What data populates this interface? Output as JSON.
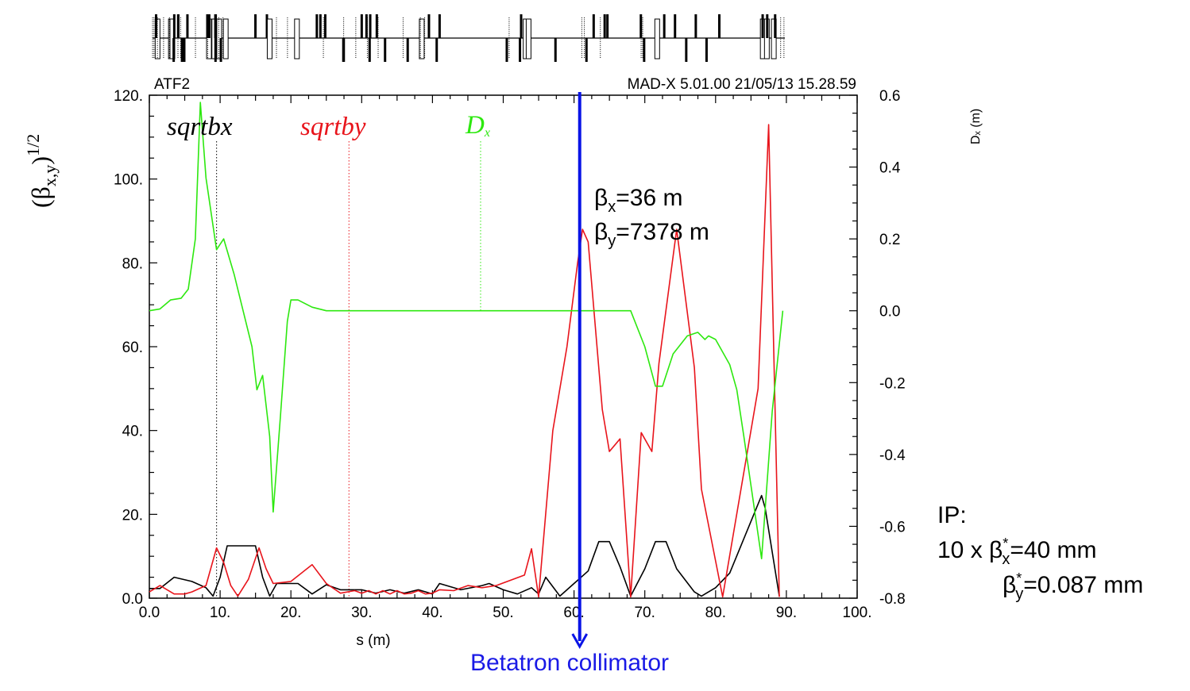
{
  "header": {
    "left": "ATF2",
    "right": "MAD-X 5.01.00  21/05/13 15.28.59"
  },
  "axes": {
    "xlabel": "s (m)",
    "ylabel_left_base": "(β",
    "ylabel_left_sub": "x,y",
    "ylabel_left_close": ")",
    "ylabel_left_sup": "1/2",
    "ylabel_right": "Dₓ (m)"
  },
  "legend": {
    "sqrtbx": "sqrtbx",
    "sqrtby": "sqrtby",
    "dx_main": "D",
    "dx_sub": "x"
  },
  "annotations": {
    "beta_x_pre": "β",
    "beta_x_sub": "x",
    "beta_x_post": "=36 m",
    "beta_y_pre": "β",
    "beta_y_sub": "y",
    "beta_y_post": "=7378 m",
    "collimator": "Betatron collimator",
    "ip_title": "IP:",
    "ip_line1_pre": "10 x β",
    "ip_line1_sup": "*",
    "ip_line1_sub": "x",
    "ip_line1_post": "=40 mm",
    "ip_line2_pre": "β",
    "ip_line2_sup": "*",
    "ip_line2_sub": "y",
    "ip_line2_post": "=0.087 mm"
  },
  "colors": {
    "sqrtbx": "#000000",
    "sqrtby": "#e8141b",
    "dx": "#2de80f",
    "arrow": "#0a14e6",
    "collimator_text": "#1a1ae6"
  },
  "chart_data": {
    "type": "line",
    "xlim": [
      0,
      100
    ],
    "ylim_left": [
      0,
      120
    ],
    "ylim_right": [
      -0.8,
      0.6
    ],
    "x_ticks": [
      "0.0",
      "10.",
      "20.",
      "30.",
      "40.",
      "50.",
      "60.",
      "70.",
      "80.",
      "90.",
      "100."
    ],
    "x_tick_values": [
      0,
      10,
      20,
      30,
      40,
      50,
      60,
      70,
      80,
      90,
      100
    ],
    "yleft_ticks": [
      "0.0",
      "20.",
      "40.",
      "60.",
      "80.",
      "100.",
      "120."
    ],
    "yleft_tick_values": [
      0,
      20,
      40,
      60,
      80,
      100,
      120
    ],
    "yright_ticks": [
      "-0.8",
      "-0.6",
      "-0.4",
      "-0.2",
      "0.0",
      "0.2",
      "0.4",
      "0.6"
    ],
    "yright_tick_values": [
      -0.8,
      -0.6,
      -0.4,
      -0.2,
      0.0,
      0.2,
      0.4,
      0.6
    ],
    "legend_marker_x": {
      "sqrtbx": 9.5,
      "sqrtby": 28.2,
      "dx": 46.8
    },
    "collimator_s": 60.8,
    "series": [
      {
        "name": "sqrtbx",
        "axis": "left",
        "points": [
          [
            0,
            2.3
          ],
          [
            1.5,
            2.3
          ],
          [
            3.5,
            5.0
          ],
          [
            6,
            4.0
          ],
          [
            8,
            2.5
          ],
          [
            9,
            0.5
          ],
          [
            10,
            5.0
          ],
          [
            11,
            12.5
          ],
          [
            15,
            12.5
          ],
          [
            16,
            5.0
          ],
          [
            17,
            0.5
          ],
          [
            18,
            3.5
          ],
          [
            21,
            3.5
          ],
          [
            23,
            1.0
          ],
          [
            25,
            3.2
          ],
          [
            27,
            2.0
          ],
          [
            30,
            2.0
          ],
          [
            32,
            1.2
          ],
          [
            34,
            2.0
          ],
          [
            36,
            1.2
          ],
          [
            38,
            2.0
          ],
          [
            40,
            1.0
          ],
          [
            41,
            3.5
          ],
          [
            44,
            2.0
          ],
          [
            47,
            3.0
          ],
          [
            48,
            3.5
          ],
          [
            50,
            2.0
          ],
          [
            52,
            1.0
          ],
          [
            54,
            2.5
          ],
          [
            55,
            1.0
          ],
          [
            56,
            5.0
          ],
          [
            58,
            0.5
          ],
          [
            60,
            3.5
          ],
          [
            62,
            6.5
          ],
          [
            63.5,
            13.5
          ],
          [
            65,
            13.5
          ],
          [
            66.5,
            7.5
          ],
          [
            68,
            0.5
          ],
          [
            70,
            7.0
          ],
          [
            71.5,
            13.5
          ],
          [
            73,
            13.5
          ],
          [
            74.5,
            7.0
          ],
          [
            77,
            1.5
          ],
          [
            78,
            0.5
          ],
          [
            80,
            2.5
          ],
          [
            82,
            6.0
          ],
          [
            86.5,
            24.5
          ],
          [
            87,
            21.5
          ],
          [
            89,
            0.5
          ]
        ]
      },
      {
        "name": "sqrtby",
        "axis": "left",
        "points": [
          [
            0,
            1.5
          ],
          [
            1.5,
            3.0
          ],
          [
            3.5,
            1.0
          ],
          [
            5,
            1.0
          ],
          [
            6,
            1.5
          ],
          [
            8,
            3.0
          ],
          [
            9.5,
            12.0
          ],
          [
            10.5,
            8.5
          ],
          [
            11.5,
            3.0
          ],
          [
            12.5,
            0.5
          ],
          [
            14,
            4.5
          ],
          [
            15.5,
            12.0
          ],
          [
            16.5,
            7.0
          ],
          [
            17.5,
            3.5
          ],
          [
            20,
            4.0
          ],
          [
            23,
            8.0
          ],
          [
            25,
            3.5
          ],
          [
            27,
            1.2
          ],
          [
            29,
            1.8
          ],
          [
            30,
            1.2
          ],
          [
            31,
            1.8
          ],
          [
            32,
            1.0
          ],
          [
            33,
            1.8
          ],
          [
            34,
            1.0
          ],
          [
            35,
            1.8
          ],
          [
            36,
            1.0
          ],
          [
            37,
            1.2
          ],
          [
            38,
            1.8
          ],
          [
            39,
            1.0
          ],
          [
            40,
            1.2
          ],
          [
            41,
            2.0
          ],
          [
            43,
            1.8
          ],
          [
            45,
            3.0
          ],
          [
            47,
            2.5
          ],
          [
            49,
            3.0
          ],
          [
            53,
            5.5
          ],
          [
            54,
            11.8
          ],
          [
            55,
            0.3
          ],
          [
            57,
            40.0
          ],
          [
            59,
            60.0
          ],
          [
            60.5,
            80.0
          ],
          [
            61.2,
            88.0
          ],
          [
            62,
            85.0
          ],
          [
            64,
            45.0
          ],
          [
            65,
            35.0
          ],
          [
            66.5,
            38.0
          ],
          [
            68,
            0.3
          ],
          [
            69.5,
            39.5
          ],
          [
            71,
            35.0
          ],
          [
            72,
            56.0
          ],
          [
            74.5,
            88.0
          ],
          [
            77,
            55.0
          ],
          [
            78,
            26.0
          ],
          [
            81,
            0.3
          ],
          [
            86,
            50.0
          ],
          [
            87.5,
            113.0
          ],
          [
            89,
            0.3
          ]
        ]
      },
      {
        "name": "Dx",
        "axis": "right",
        "points": [
          [
            0,
            0.0
          ],
          [
            1.5,
            0.005
          ],
          [
            3,
            0.03
          ],
          [
            4.5,
            0.035
          ],
          [
            5.5,
            0.06
          ],
          [
            6.5,
            0.2
          ],
          [
            7.2,
            0.58
          ],
          [
            8,
            0.37
          ],
          [
            9.5,
            0.17
          ],
          [
            10.5,
            0.2
          ],
          [
            12,
            0.1
          ],
          [
            13,
            0.02
          ],
          [
            14.5,
            -0.1
          ],
          [
            15.2,
            -0.22
          ],
          [
            16,
            -0.18
          ],
          [
            17,
            -0.35
          ],
          [
            17.5,
            -0.56
          ],
          [
            18.5,
            -0.3
          ],
          [
            19.5,
            -0.03
          ],
          [
            20,
            0.03
          ],
          [
            21,
            0.03
          ],
          [
            23,
            0.01
          ],
          [
            25,
            0.0
          ],
          [
            68,
            0.0
          ],
          [
            70,
            -0.1
          ],
          [
            71.5,
            -0.21
          ],
          [
            72.5,
            -0.21
          ],
          [
            74,
            -0.12
          ],
          [
            76,
            -0.07
          ],
          [
            77.5,
            -0.06
          ],
          [
            78.5,
            -0.08
          ],
          [
            79,
            -0.07
          ],
          [
            80,
            -0.08
          ],
          [
            82,
            -0.15
          ],
          [
            83,
            -0.22
          ],
          [
            84,
            -0.35
          ],
          [
            86.5,
            -0.69
          ],
          [
            88,
            -0.28
          ],
          [
            89.5,
            0.0
          ]
        ]
      }
    ]
  }
}
